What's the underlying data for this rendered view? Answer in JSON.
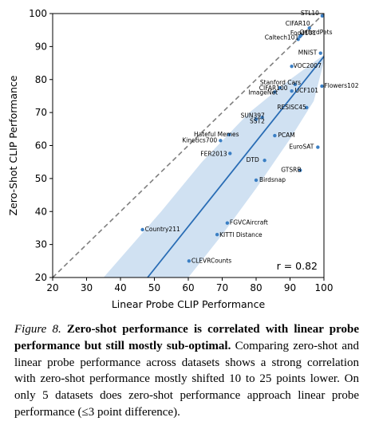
{
  "chart_data": {
    "type": "scatter",
    "xlabel": "Linear Probe CLIP Performance",
    "ylabel": "Zero-Shot CLIP Performance",
    "xlim": [
      20,
      100
    ],
    "ylim": [
      20,
      100
    ],
    "xticks": [
      20,
      30,
      40,
      50,
      60,
      70,
      80,
      90,
      100
    ],
    "yticks": [
      20,
      30,
      40,
      50,
      60,
      70,
      80,
      90,
      100
    ],
    "grid": false,
    "points": [
      {
        "label": "STL10",
        "x": 99.5,
        "y": 99.3
      },
      {
        "label": "CIFAR10",
        "x": 95.7,
        "y": 95.6
      },
      {
        "label": "Food101",
        "x": 92.9,
        "y": 93.0
      },
      {
        "label": "OxfordPets",
        "x": 93.3,
        "y": 93.5
      },
      {
        "label": "Caltech101",
        "x": 92.4,
        "y": 92.2
      },
      {
        "label": "MNIST",
        "x": 99.0,
        "y": 88.0
      },
      {
        "label": "VOC2007",
        "x": 90.5,
        "y": 84.0
      },
      {
        "label": "Stanford Cars",
        "x": 91.5,
        "y": 78.5
      },
      {
        "label": "Flowers102",
        "x": 99.4,
        "y": 78.0
      },
      {
        "label": "CIFAR100",
        "x": 87.0,
        "y": 77.5
      },
      {
        "label": "ImageNet",
        "x": 85.5,
        "y": 76.2
      },
      {
        "label": "UCF101",
        "x": 90.5,
        "y": 76.5
      },
      {
        "label": "RESISC45",
        "x": 94.9,
        "y": 71.5
      },
      {
        "label": "SUN397",
        "x": 81.8,
        "y": 68.5
      },
      {
        "label": "SST2",
        "x": 80.0,
        "y": 68.0
      },
      {
        "label": "PCAM",
        "x": 85.5,
        "y": 63.0
      },
      {
        "label": "Hateful Memes",
        "x": 72.0,
        "y": 63.3
      },
      {
        "label": "Kinetics700",
        "x": 69.5,
        "y": 61.5
      },
      {
        "label": "EuroSAT",
        "x": 98.2,
        "y": 59.5
      },
      {
        "label": "FER2013",
        "x": 72.3,
        "y": 57.6
      },
      {
        "label": "DTD",
        "x": 82.5,
        "y": 55.5
      },
      {
        "label": "GTSRB",
        "x": 93.0,
        "y": 52.5
      },
      {
        "label": "Birdsnap",
        "x": 80.0,
        "y": 49.5
      },
      {
        "label": "FGVCAircraft",
        "x": 71.5,
        "y": 36.5
      },
      {
        "label": "Country211",
        "x": 46.5,
        "y": 34.5
      },
      {
        "label": "KITTI Distance",
        "x": 68.5,
        "y": 33.0
      },
      {
        "label": "CLEVRCounts",
        "x": 60.2,
        "y": 25.0
      }
    ],
    "fit_line": {
      "x": [
        48,
        100
      ],
      "y": [
        20,
        87
      ]
    },
    "confidence_band": {
      "upper": [
        [
          35,
          20
        ],
        [
          52,
          40
        ],
        [
          64,
          55
        ],
        [
          78,
          70
        ],
        [
          90,
          80
        ],
        [
          100,
          87.5
        ]
      ],
      "lower": [
        [
          60,
          20
        ],
        [
          70,
          33
        ],
        [
          80,
          47
        ],
        [
          90,
          62
        ],
        [
          97,
          73.5
        ],
        [
          100,
          85.5
        ]
      ]
    },
    "identity_line": {
      "x": [
        20,
        100
      ],
      "y": [
        20,
        100
      ]
    },
    "annotation": "r = 0.82"
  },
  "caption": {
    "figure_label": "Figure 8.",
    "bold_text": "Zero-shot performance is correlated with linear probe performance but still mostly sub-optimal.",
    "body_text": "Comparing zero-shot and linear probe performance across datasets shows a strong correlation with zero-shot performance mostly shifted 10 to 25 points lower. On only 5 datasets does zero-shot performance approach linear probe performance (≤3 point difference)."
  },
  "colors": {
    "points": "#3b7fc4",
    "fit_line": "#2a6db5",
    "band": "#c8dcf0",
    "identity_line": "#7f7f7f"
  }
}
